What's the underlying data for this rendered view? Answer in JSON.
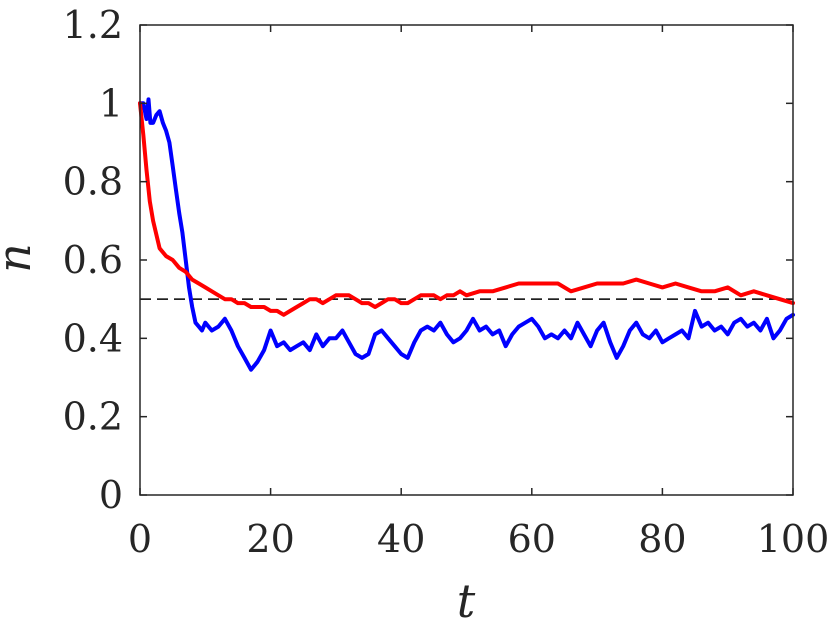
{
  "chart_data": {
    "type": "line",
    "title": "",
    "xlabel": "t",
    "ylabel": "n",
    "xlim": [
      0,
      100
    ],
    "ylim": [
      0,
      1.2
    ],
    "xticks": [
      0,
      20,
      40,
      60,
      80,
      100
    ],
    "xtick_labels": [
      "0",
      "20",
      "40",
      "60",
      "80",
      "100"
    ],
    "yticks": [
      0,
      0.2,
      0.4,
      0.6,
      0.8,
      1.0,
      1.2
    ],
    "ytick_labels": [
      "0",
      "0.2",
      "0.4",
      "0.6",
      "0.8",
      "1",
      "1.2"
    ],
    "grid": false,
    "box": true,
    "reference_line": {
      "y": 0.5,
      "style": "dashed",
      "color": "#000000"
    },
    "series": [
      {
        "color": "#0000ff",
        "x": [
          0,
          0.5,
          1,
          1.3,
          1.6,
          2,
          2.5,
          3,
          3.5,
          4,
          4.5,
          5,
          5.5,
          6,
          6.5,
          7,
          7.5,
          8,
          8.5,
          9,
          9.5,
          10,
          11,
          12,
          13,
          14,
          15,
          16,
          17,
          18,
          19,
          20,
          21,
          22,
          23,
          24,
          25,
          26,
          27,
          28,
          29,
          30,
          31,
          32,
          33,
          34,
          35,
          36,
          37,
          38,
          39,
          40,
          41,
          42,
          43,
          44,
          45,
          46,
          47,
          48,
          49,
          50,
          51,
          52,
          53,
          54,
          55,
          56,
          57,
          58,
          59,
          60,
          61,
          62,
          63,
          64,
          65,
          66,
          67,
          68,
          69,
          70,
          71,
          72,
          73,
          74,
          75,
          76,
          77,
          78,
          79,
          80,
          81,
          82,
          83,
          84,
          85,
          86,
          87,
          88,
          89,
          90,
          91,
          92,
          93,
          94,
          95,
          96,
          97,
          98,
          99,
          100
        ],
        "y": [
          1.0,
          1.0,
          0.96,
          1.01,
          0.95,
          0.95,
          0.97,
          0.98,
          0.95,
          0.93,
          0.9,
          0.84,
          0.78,
          0.72,
          0.67,
          0.6,
          0.53,
          0.48,
          0.44,
          0.43,
          0.42,
          0.44,
          0.42,
          0.43,
          0.45,
          0.42,
          0.38,
          0.35,
          0.32,
          0.34,
          0.37,
          0.42,
          0.38,
          0.39,
          0.37,
          0.38,
          0.39,
          0.37,
          0.41,
          0.38,
          0.4,
          0.4,
          0.42,
          0.39,
          0.36,
          0.35,
          0.36,
          0.41,
          0.42,
          0.4,
          0.38,
          0.36,
          0.35,
          0.39,
          0.42,
          0.43,
          0.42,
          0.44,
          0.41,
          0.39,
          0.4,
          0.42,
          0.45,
          0.42,
          0.43,
          0.41,
          0.42,
          0.38,
          0.41,
          0.43,
          0.44,
          0.45,
          0.43,
          0.4,
          0.41,
          0.4,
          0.42,
          0.4,
          0.44,
          0.41,
          0.38,
          0.42,
          0.44,
          0.39,
          0.35,
          0.38,
          0.42,
          0.44,
          0.41,
          0.4,
          0.42,
          0.39,
          0.4,
          0.41,
          0.42,
          0.4,
          0.47,
          0.43,
          0.44,
          0.42,
          0.43,
          0.41,
          0.44,
          0.45,
          0.43,
          0.44,
          0.42,
          0.45,
          0.4,
          0.42,
          0.45,
          0.46
        ]
      },
      {
        "color": "#ff0000",
        "x": [
          0,
          0.5,
          1,
          1.5,
          2,
          3,
          4,
          5,
          6,
          7,
          8,
          9,
          10,
          11,
          12,
          13,
          14,
          15,
          16,
          17,
          18,
          19,
          20,
          21,
          22,
          23,
          24,
          25,
          26,
          27,
          28,
          29,
          30,
          31,
          32,
          33,
          34,
          35,
          36,
          37,
          38,
          39,
          40,
          41,
          42,
          43,
          44,
          45,
          46,
          47,
          48,
          49,
          50,
          52,
          54,
          56,
          58,
          60,
          62,
          64,
          66,
          68,
          70,
          72,
          74,
          76,
          78,
          80,
          82,
          84,
          86,
          88,
          90,
          92,
          94,
          96,
          98,
          100
        ],
        "y": [
          1.0,
          0.92,
          0.83,
          0.75,
          0.7,
          0.63,
          0.61,
          0.6,
          0.58,
          0.57,
          0.55,
          0.54,
          0.53,
          0.52,
          0.51,
          0.5,
          0.5,
          0.49,
          0.49,
          0.48,
          0.48,
          0.48,
          0.47,
          0.47,
          0.46,
          0.47,
          0.48,
          0.49,
          0.5,
          0.5,
          0.49,
          0.5,
          0.51,
          0.51,
          0.51,
          0.5,
          0.49,
          0.49,
          0.48,
          0.49,
          0.5,
          0.5,
          0.49,
          0.49,
          0.5,
          0.51,
          0.51,
          0.51,
          0.5,
          0.51,
          0.51,
          0.52,
          0.51,
          0.52,
          0.52,
          0.53,
          0.54,
          0.54,
          0.54,
          0.54,
          0.52,
          0.53,
          0.54,
          0.54,
          0.54,
          0.55,
          0.54,
          0.53,
          0.54,
          0.53,
          0.52,
          0.52,
          0.53,
          0.51,
          0.52,
          0.51,
          0.5,
          0.49
        ]
      }
    ]
  }
}
